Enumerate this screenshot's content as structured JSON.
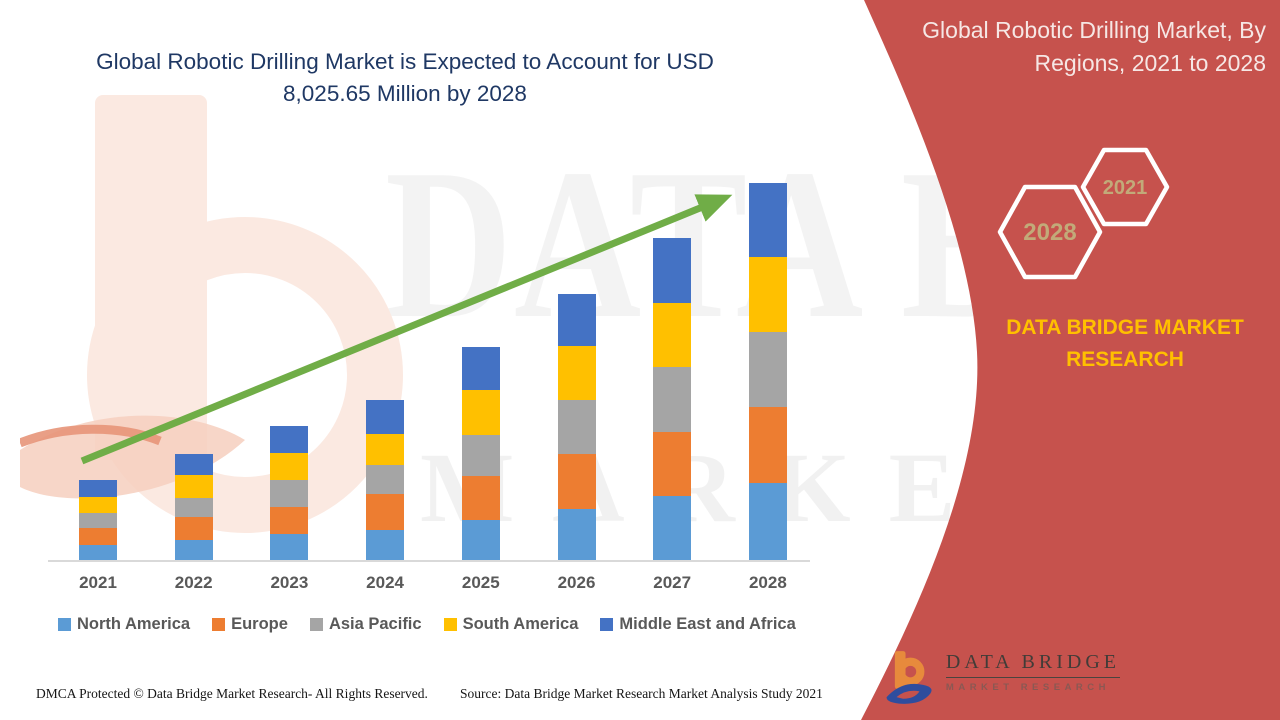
{
  "header": {
    "chart_title": "Global Robotic Drilling Market is Expected to Account for USD 8,025.65 Million by 2028"
  },
  "chart_data": {
    "type": "bar",
    "stacked": true,
    "title": "Global Robotic Drilling Market is Expected to Account for USD 8,025.65 Million by 2028",
    "unit": "USD Million",
    "categories": [
      "2021",
      "2022",
      "2023",
      "2024",
      "2025",
      "2026",
      "2027",
      "2028"
    ],
    "series": [
      {
        "name": "North America",
        "color": "#5B9BD5",
        "values": [
          340,
          446,
          573,
          658,
          870,
          1104,
          1380,
          1665
        ]
      },
      {
        "name": "Europe",
        "color": "#ED7D31",
        "values": [
          361,
          488,
          573,
          764,
          934,
          1168,
          1359,
          1601
        ]
      },
      {
        "name": "Asia Pacific",
        "color": "#A5A5A5",
        "values": [
          318,
          403,
          573,
          616,
          870,
          1146,
          1380,
          1601
        ]
      },
      {
        "name": "South America",
        "color": "#FFC000",
        "values": [
          340,
          488,
          573,
          658,
          955,
          1146,
          1359,
          1578.65
        ]
      },
      {
        "name": "Middle East and Africa",
        "color": "#4472C4",
        "values": [
          361,
          446,
          573,
          722,
          913,
          1104,
          1380,
          1580
        ]
      }
    ],
    "totals_estimated": [
      1720,
      2271,
      2865,
      3418,
      4542,
      5668,
      6858,
      8025.65
    ],
    "final_value_label": "8,025.65",
    "ylim": [
      0,
      8500
    ],
    "grid": false,
    "legend_position": "bottom",
    "trend_arrow": true,
    "trend_arrow_color": "#70AD47",
    "axis_line_color": "#D9D9D9"
  },
  "right_panel": {
    "title": "Global Robotic Drilling Market, By Regions, 2021 to 2028",
    "panel_color": "#C6524D",
    "hexagons": [
      {
        "label": "2028"
      },
      {
        "label": "2021"
      }
    ],
    "brand_text": "DATA BRIDGE MARKET RESEARCH",
    "logo": {
      "name": "DATA BRIDGE",
      "tagline": "MARKET RESEARCH"
    }
  },
  "watermark": {
    "line1": "DATA BRIDGE",
    "line2": "MARKET RESEARCH"
  },
  "footer": {
    "left": "DMCA Protected © Data Bridge Market Research- All Rights Reserved.",
    "source": "Source: Data Bridge Market Research Market Analysis Study 2021"
  }
}
